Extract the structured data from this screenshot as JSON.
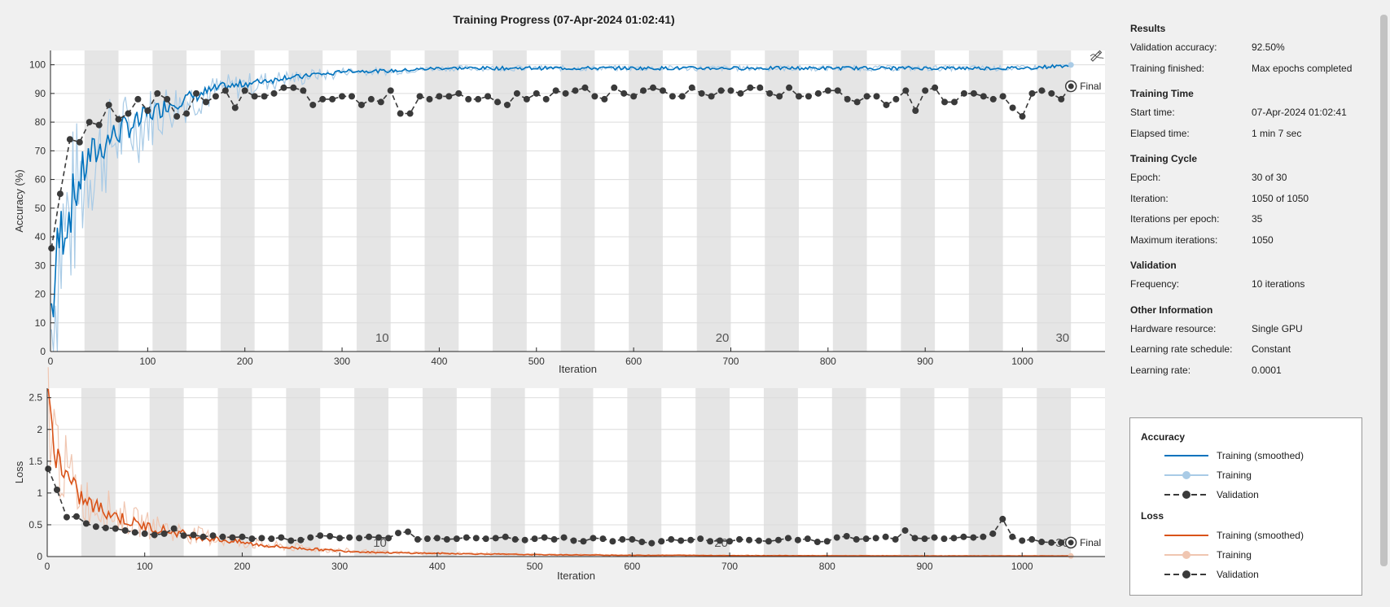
{
  "title": "Training Progress (07-Apr-2024 01:02:41)",
  "final_label": "Final",
  "info": {
    "sections": [
      {
        "heading": "Results",
        "rows": [
          {
            "key": "Validation accuracy:",
            "value": "92.50%"
          },
          {
            "key": "Training finished:",
            "value": "Max epochs completed"
          }
        ]
      },
      {
        "heading": "Training Time",
        "rows": [
          {
            "key": "Start time:",
            "value": "07-Apr-2024 01:02:41"
          },
          {
            "key": "Elapsed time:",
            "value": "1 min 7 sec"
          }
        ]
      },
      {
        "heading": "Training Cycle",
        "rows": [
          {
            "key": "Epoch:",
            "value": "30 of 30"
          },
          {
            "key": "Iteration:",
            "value": "1050 of 1050"
          },
          {
            "key": "Iterations per epoch:",
            "value": "35"
          },
          {
            "key": "Maximum iterations:",
            "value": "1050"
          }
        ]
      },
      {
        "heading": "Validation",
        "rows": [
          {
            "key": "Frequency:",
            "value": "10 iterations"
          }
        ]
      },
      {
        "heading": "Other Information",
        "rows": [
          {
            "key": "Hardware resource:",
            "value": "Single GPU"
          },
          {
            "key": "Learning rate schedule:",
            "value": "Constant"
          },
          {
            "key": "Learning rate:",
            "value": "0.0001"
          }
        ]
      }
    ]
  },
  "legend": {
    "accuracy_heading": "Accuracy",
    "loss_heading": "Loss",
    "entries": {
      "acc_smoothed": "Training (smoothed)",
      "acc_training": "Training",
      "acc_validation": "Validation",
      "loss_smoothed": "Training (smoothed)",
      "loss_training": "Training",
      "loss_validation": "Validation"
    }
  },
  "colors": {
    "acc_smoothed": "#0072bd",
    "acc_raw": "#a9cbe6",
    "loss_smoothed": "#d95319",
    "loss_raw": "#f0c6b1",
    "validation": "#3a3a3a",
    "epoch_shade": "#e5e5e5",
    "grid": "#dcdcdc"
  },
  "chart_data": [
    {
      "type": "line",
      "name": "accuracy",
      "ylabel": "Accuracy (%)",
      "xlabel": "Iteration",
      "xlim": [
        0,
        1085
      ],
      "ylim": [
        0,
        105
      ],
      "xticks": [
        0,
        100,
        200,
        300,
        400,
        500,
        600,
        700,
        800,
        900,
        1000
      ],
      "yticks": [
        0,
        10,
        20,
        30,
        40,
        50,
        60,
        70,
        80,
        90,
        100
      ],
      "epochs_per_run": 30,
      "iterations_per_epoch": 35,
      "epoch_labels": [
        10,
        20,
        30
      ],
      "grid": true,
      "validation": {
        "x": [
          1,
          10,
          20,
          30,
          40,
          50,
          60,
          70,
          80,
          90,
          100,
          110,
          120,
          130,
          140,
          150,
          160,
          170,
          180,
          190,
          200,
          210,
          220,
          230,
          240,
          250,
          260,
          270,
          280,
          290,
          300,
          310,
          320,
          330,
          340,
          350,
          360,
          370,
          380,
          390,
          400,
          410,
          420,
          430,
          440,
          450,
          460,
          470,
          480,
          490,
          500,
          510,
          520,
          530,
          540,
          550,
          560,
          570,
          580,
          590,
          600,
          610,
          620,
          630,
          640,
          650,
          660,
          670,
          680,
          690,
          700,
          710,
          720,
          730,
          740,
          750,
          760,
          770,
          780,
          790,
          800,
          810,
          820,
          830,
          840,
          850,
          860,
          870,
          880,
          890,
          900,
          910,
          920,
          930,
          940,
          950,
          960,
          970,
          980,
          990,
          1000,
          1010,
          1020,
          1030,
          1040,
          1050
        ],
        "y": [
          36,
          55,
          74,
          73,
          80,
          79,
          86,
          81,
          83,
          88,
          84,
          90,
          88,
          82,
          83,
          90,
          87,
          89,
          91,
          85,
          91,
          89,
          89,
          90,
          92,
          92,
          91,
          86,
          88,
          88,
          89,
          89,
          86,
          88,
          87,
          91,
          83,
          83,
          89,
          88,
          89,
          89,
          90,
          88,
          88,
          89,
          87,
          86,
          90,
          88,
          90,
          88,
          91,
          90,
          91,
          92,
          89,
          88,
          92,
          90,
          89,
          91,
          92,
          91,
          89,
          89,
          92,
          90,
          89,
          91,
          91,
          90,
          92,
          92,
          90,
          89,
          92,
          89,
          89,
          90,
          91,
          91,
          88,
          87,
          89,
          89,
          86,
          88,
          91,
          84,
          91,
          92,
          87,
          87,
          90,
          90,
          89,
          88,
          89,
          85,
          82,
          90,
          91,
          90,
          88,
          92.5
        ]
      },
      "training_smoothed_points": {
        "x": [
          1,
          10,
          20,
          30,
          40,
          50,
          60,
          70,
          80,
          90,
          100,
          110,
          120,
          130,
          140,
          150,
          160,
          170,
          180,
          190,
          200,
          210,
          220,
          230,
          240,
          250,
          260,
          270,
          280,
          290,
          300,
          350,
          400,
          450,
          500,
          550,
          600,
          650,
          700,
          750,
          800,
          850,
          900,
          950,
          1000,
          1050
        ],
        "y": [
          20,
          45,
          53,
          62,
          70,
          72,
          76,
          78,
          80,
          81,
          84,
          85,
          87,
          88,
          89,
          90,
          91,
          92,
          93,
          93,
          94,
          94,
          95,
          95,
          96,
          96,
          96,
          97,
          97,
          97,
          98,
          98,
          99,
          99,
          99,
          99,
          99,
          99,
          99,
          99,
          99,
          99,
          99,
          99,
          99,
          100
        ]
      }
    },
    {
      "type": "line",
      "name": "loss",
      "ylabel": "Loss",
      "xlabel": "Iteration",
      "xlim": [
        0,
        1085
      ],
      "ylim": [
        0,
        2.65
      ],
      "xticks": [
        0,
        100,
        200,
        300,
        400,
        500,
        600,
        700,
        800,
        900,
        1000
      ],
      "yticks": [
        0,
        0.5,
        1,
        1.5,
        2,
        2.5
      ],
      "ytick_labels": [
        "0",
        "0.5",
        "1",
        "1.5",
        "2",
        "2.5"
      ],
      "grid": true,
      "validation": {
        "x": [
          1,
          10,
          20,
          30,
          40,
          50,
          60,
          70,
          80,
          90,
          100,
          110,
          120,
          130,
          140,
          150,
          160,
          170,
          180,
          190,
          200,
          210,
          220,
          230,
          240,
          250,
          260,
          270,
          280,
          290,
          300,
          310,
          320,
          330,
          340,
          350,
          360,
          370,
          380,
          390,
          400,
          410,
          420,
          430,
          440,
          450,
          460,
          470,
          480,
          490,
          500,
          510,
          520,
          530,
          540,
          550,
          560,
          570,
          580,
          590,
          600,
          610,
          620,
          630,
          640,
          650,
          660,
          670,
          680,
          690,
          700,
          710,
          720,
          730,
          740,
          750,
          760,
          770,
          780,
          790,
          800,
          810,
          820,
          830,
          840,
          850,
          860,
          870,
          880,
          890,
          900,
          910,
          920,
          930,
          940,
          950,
          960,
          970,
          980,
          990,
          1000,
          1010,
          1020,
          1030,
          1040,
          1050
        ],
        "y": [
          1.38,
          1.05,
          0.62,
          0.63,
          0.52,
          0.47,
          0.45,
          0.44,
          0.41,
          0.38,
          0.36,
          0.34,
          0.36,
          0.44,
          0.33,
          0.34,
          0.31,
          0.33,
          0.31,
          0.3,
          0.31,
          0.28,
          0.29,
          0.28,
          0.3,
          0.25,
          0.26,
          0.3,
          0.33,
          0.32,
          0.29,
          0.3,
          0.29,
          0.31,
          0.3,
          0.29,
          0.37,
          0.39,
          0.27,
          0.28,
          0.29,
          0.27,
          0.28,
          0.3,
          0.29,
          0.28,
          0.29,
          0.31,
          0.27,
          0.26,
          0.28,
          0.3,
          0.27,
          0.3,
          0.25,
          0.24,
          0.29,
          0.28,
          0.24,
          0.27,
          0.27,
          0.23,
          0.21,
          0.24,
          0.27,
          0.25,
          0.26,
          0.28,
          0.24,
          0.25,
          0.24,
          0.27,
          0.26,
          0.25,
          0.24,
          0.26,
          0.29,
          0.26,
          0.28,
          0.23,
          0.24,
          0.3,
          0.32,
          0.27,
          0.28,
          0.29,
          0.31,
          0.27,
          0.41,
          0.29,
          0.28,
          0.3,
          0.28,
          0.29,
          0.31,
          0.3,
          0.31,
          0.36,
          0.59,
          0.31,
          0.25,
          0.27,
          0.23,
          0.22,
          0.22,
          0.22
        ]
      },
      "training_smoothed_points": {
        "x": [
          1,
          10,
          20,
          30,
          40,
          50,
          60,
          70,
          80,
          90,
          100,
          110,
          120,
          130,
          140,
          150,
          160,
          170,
          180,
          190,
          200,
          220,
          240,
          260,
          280,
          300,
          350,
          400,
          450,
          500,
          550,
          600,
          650,
          700,
          750,
          800,
          850,
          900,
          950,
          1000,
          1050
        ],
        "y": [
          2.3,
          1.6,
          1.25,
          1.0,
          0.85,
          0.78,
          0.72,
          0.65,
          0.58,
          0.52,
          0.48,
          0.45,
          0.42,
          0.38,
          0.36,
          0.33,
          0.3,
          0.28,
          0.26,
          0.24,
          0.22,
          0.18,
          0.15,
          0.13,
          0.11,
          0.09,
          0.06,
          0.05,
          0.04,
          0.03,
          0.025,
          0.02,
          0.02,
          0.015,
          0.015,
          0.012,
          0.012,
          0.01,
          0.01,
          0.01,
          0.01
        ]
      }
    }
  ]
}
